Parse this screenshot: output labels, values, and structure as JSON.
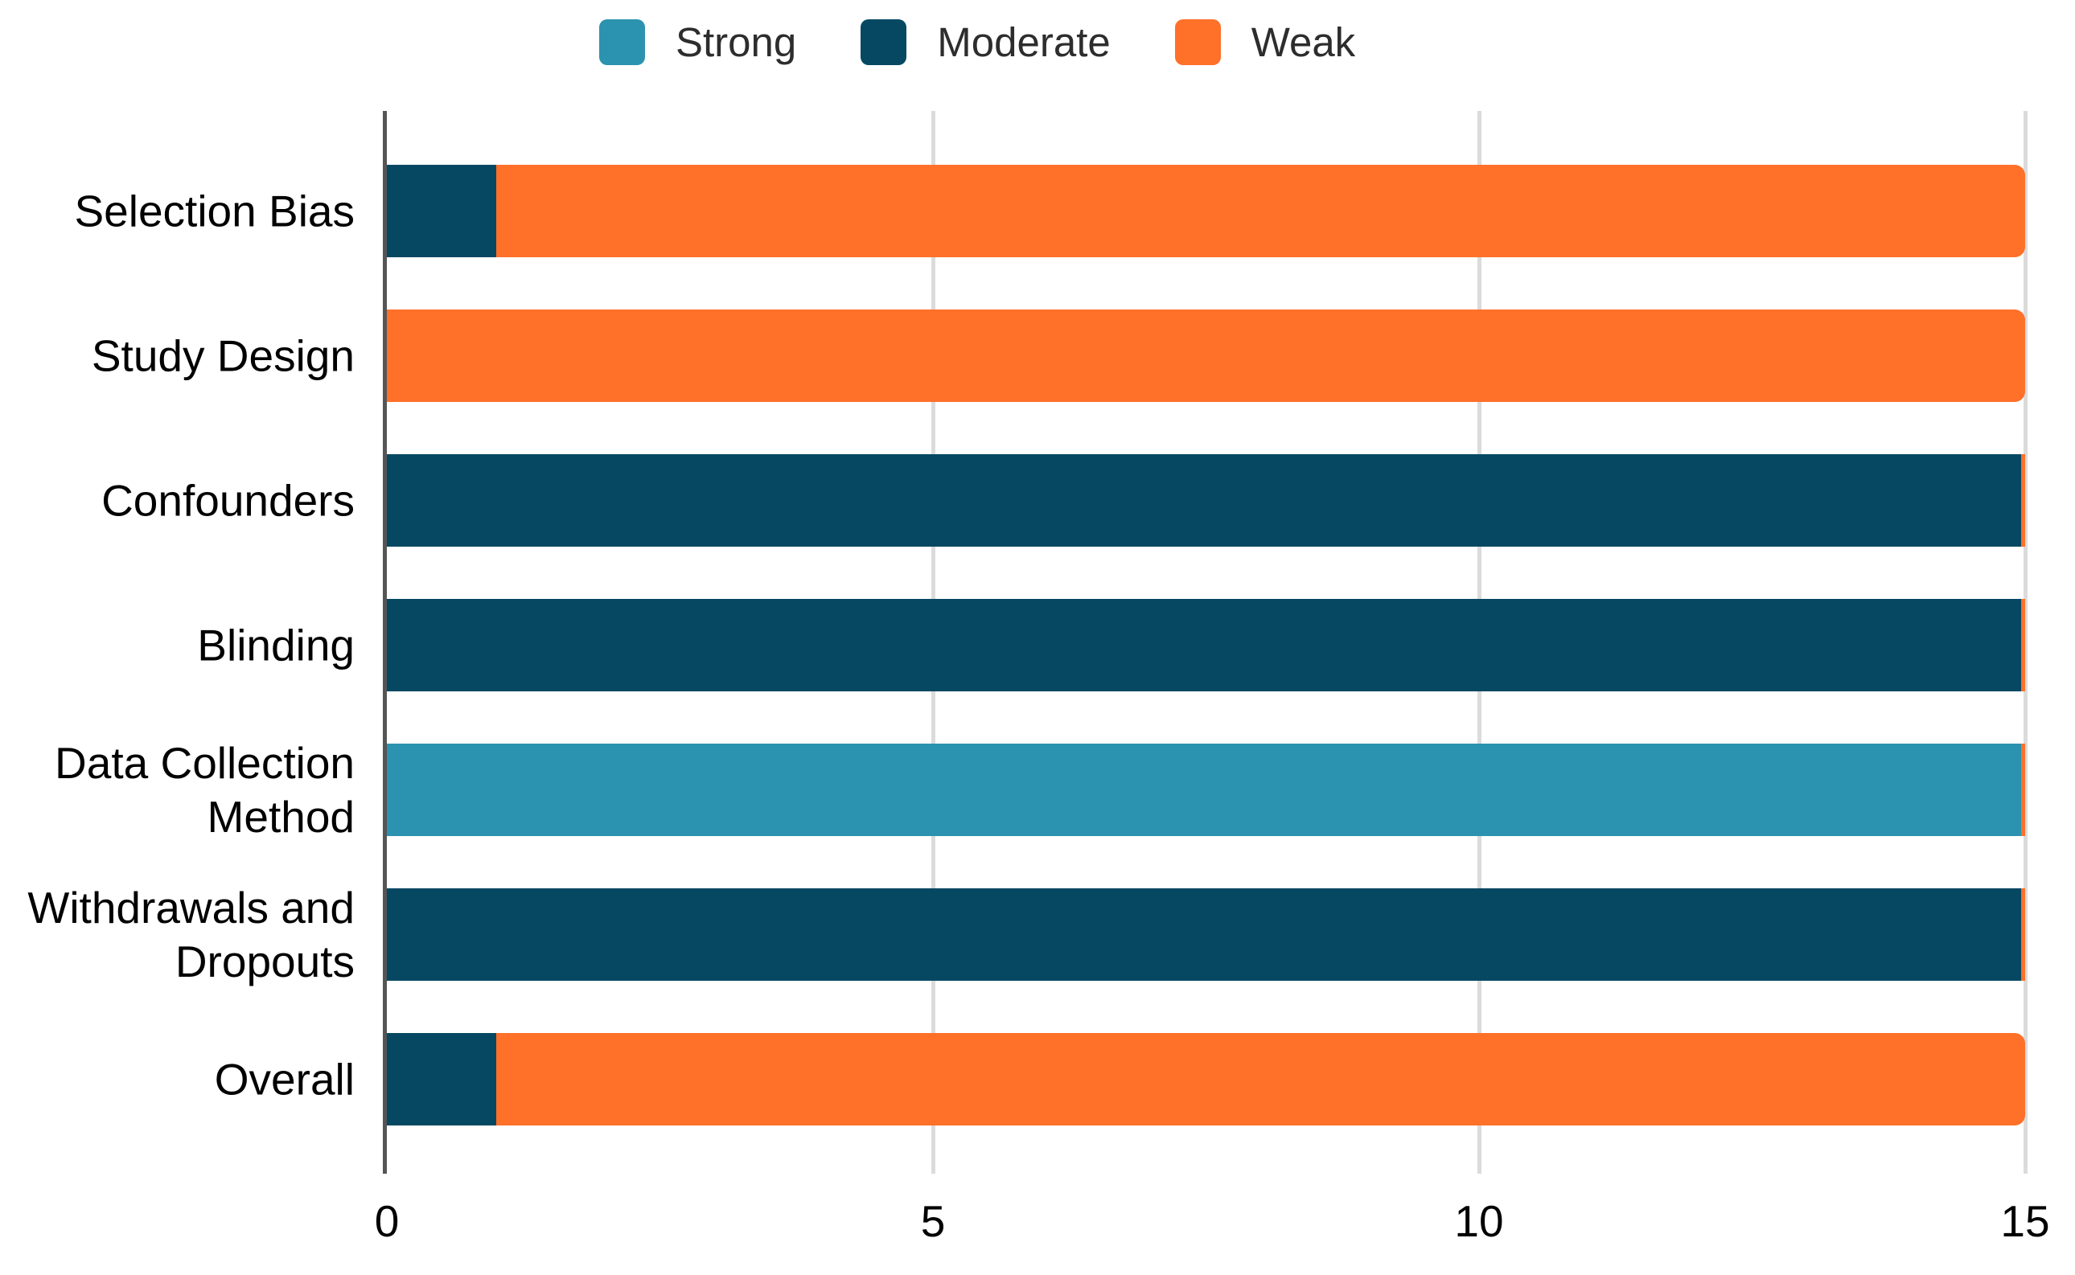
{
  "legend": {
    "position": "top",
    "items": [
      {
        "label": "Strong",
        "color": "#2B93AF"
      },
      {
        "label": "Moderate",
        "color": "#064862"
      },
      {
        "label": "Weak",
        "color": "#FF7029"
      }
    ]
  },
  "chart_data": {
    "type": "bar",
    "orientation": "horizontal",
    "stacked": true,
    "categories": [
      "Selection Bias",
      "Study Design",
      "Confounders",
      "Blinding",
      "Data Collection\nMethod",
      "Withdrawals and\nDropouts",
      "Overall"
    ],
    "series": [
      {
        "name": "Strong",
        "color": "#2B93AF",
        "values": [
          0,
          0,
          0,
          0,
          15,
          0,
          0
        ]
      },
      {
        "name": "Moderate",
        "color": "#064862",
        "values": [
          1,
          0,
          15,
          15,
          0,
          15,
          1
        ]
      },
      {
        "name": "Weak",
        "color": "#FF7029",
        "values": [
          14,
          15,
          0,
          0,
          0,
          0,
          14
        ]
      }
    ],
    "xlim": [
      0,
      15
    ],
    "xticks": [
      0,
      5,
      10,
      15
    ],
    "legend_position": "top",
    "grid": "vertical",
    "colors": {
      "background": "#FFFFFF",
      "axis_line": "#555555",
      "gridline": "#DBDBDB",
      "label_text": "#000000",
      "legend_text": "#2D2D2D"
    }
  }
}
